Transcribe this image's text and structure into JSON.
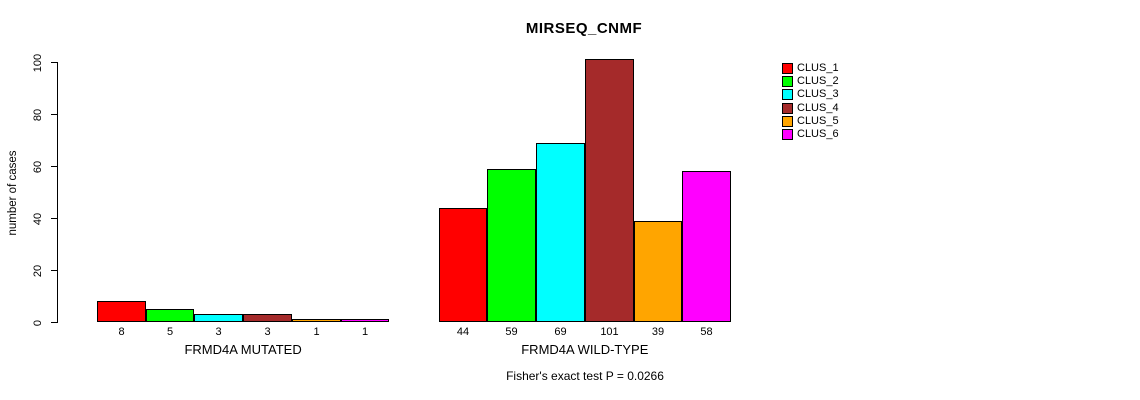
{
  "chart_data": {
    "type": "bar",
    "title": "MIRSEQ_CNMF",
    "ylabel": "number of cases",
    "xlabel": "",
    "footer": "Fisher's exact test P = 0.0266",
    "ylim": [
      0,
      100
    ],
    "yticks": [
      0,
      20,
      40,
      60,
      80,
      100
    ],
    "grid": false,
    "legend_position": "top-right",
    "series": [
      {
        "name": "CLUS_1",
        "color": "#ff0000"
      },
      {
        "name": "CLUS_2",
        "color": "#00ff00"
      },
      {
        "name": "CLUS_3",
        "color": "#00ffff"
      },
      {
        "name": "CLUS_4",
        "color": "#a52a2a"
      },
      {
        "name": "CLUS_5",
        "color": "#ffa500"
      },
      {
        "name": "CLUS_6",
        "color": "#ff00ff"
      }
    ],
    "groups": [
      {
        "label": "FRMD4A MUTATED",
        "values": [
          8,
          5,
          3,
          3,
          1,
          1
        ]
      },
      {
        "label": "FRMD4A WILD-TYPE",
        "values": [
          44,
          59,
          69,
          101,
          39,
          58
        ]
      }
    ]
  }
}
